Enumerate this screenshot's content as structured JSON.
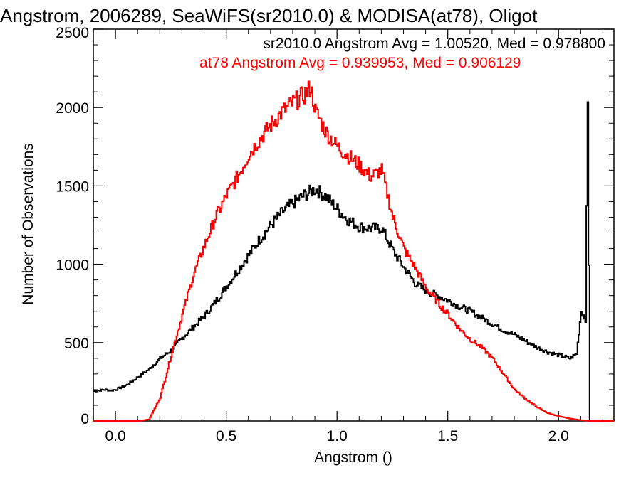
{
  "chart_data": {
    "type": "line",
    "title": "Angstrom, 2006289, SeaWiFS(sr2010.0) & MODISA(at78), Oligot",
    "xlabel": "Angstrom ()",
    "ylabel": "Number of Observations",
    "xlim": [
      -0.1,
      2.25
    ],
    "ylim": [
      0,
      2500
    ],
    "x_ticks": [
      "0.0",
      "0.5",
      "1.0",
      "1.5",
      "2.0"
    ],
    "y_ticks": [
      "0",
      "500",
      "1000",
      "1500",
      "2000",
      "2500"
    ],
    "annotations": [
      {
        "text": "sr2010.0 Angstrom Avg = 1.00520, Med = 0.978800",
        "color": "#000000"
      },
      {
        "text": "at78 Angstrom Avg = 0.939953, Med = 0.906129",
        "color": "#ff0000"
      }
    ],
    "series": [
      {
        "color": "#000000",
        "x": [
          -0.1,
          -0.05,
          -0.02,
          0.0,
          0.05,
          0.1,
          0.15,
          0.2,
          0.25,
          0.3,
          0.35,
          0.4,
          0.45,
          0.5,
          0.55,
          0.6,
          0.65,
          0.7,
          0.75,
          0.8,
          0.85,
          0.9,
          0.95,
          1.0,
          1.05,
          1.1,
          1.15,
          1.2,
          1.25,
          1.3,
          1.35,
          1.4,
          1.45,
          1.5,
          1.55,
          1.6,
          1.65,
          1.7,
          1.75,
          1.8,
          1.85,
          1.9,
          1.95,
          2.0,
          2.05,
          2.08,
          2.1,
          2.12,
          2.13,
          2.14,
          2.15,
          2.25
        ],
        "values": [
          190,
          200,
          195,
          200,
          230,
          280,
          330,
          400,
          450,
          530,
          600,
          670,
          760,
          860,
          960,
          1060,
          1160,
          1250,
          1330,
          1390,
          1440,
          1480,
          1430,
          1350,
          1280,
          1240,
          1230,
          1230,
          1090,
          980,
          880,
          830,
          800,
          770,
          730,
          700,
          660,
          620,
          580,
          550,
          510,
          470,
          440,
          420,
          400,
          430,
          700,
          650,
          2020,
          0,
          0,
          0
        ]
      },
      {
        "color": "#ff0000",
        "x": [
          -0.1,
          0.0,
          0.1,
          0.15,
          0.2,
          0.25,
          0.3,
          0.35,
          0.4,
          0.45,
          0.5,
          0.55,
          0.6,
          0.65,
          0.7,
          0.75,
          0.8,
          0.85,
          0.88,
          0.9,
          0.95,
          1.0,
          1.05,
          1.1,
          1.15,
          1.2,
          1.25,
          1.3,
          1.35,
          1.4,
          1.45,
          1.5,
          1.55,
          1.6,
          1.65,
          1.7,
          1.75,
          1.8,
          1.85,
          1.9,
          1.95,
          2.0,
          2.05,
          2.1,
          2.15,
          2.25
        ],
        "values": [
          0,
          0,
          0,
          10,
          150,
          420,
          680,
          930,
          1120,
          1300,
          1440,
          1560,
          1700,
          1800,
          1890,
          1970,
          2030,
          2080,
          2130,
          1980,
          1840,
          1750,
          1690,
          1630,
          1560,
          1600,
          1300,
          1100,
          980,
          850,
          760,
          680,
          590,
          520,
          470,
          400,
          300,
          200,
          140,
          90,
          50,
          30,
          15,
          5,
          0,
          0
        ]
      }
    ]
  }
}
